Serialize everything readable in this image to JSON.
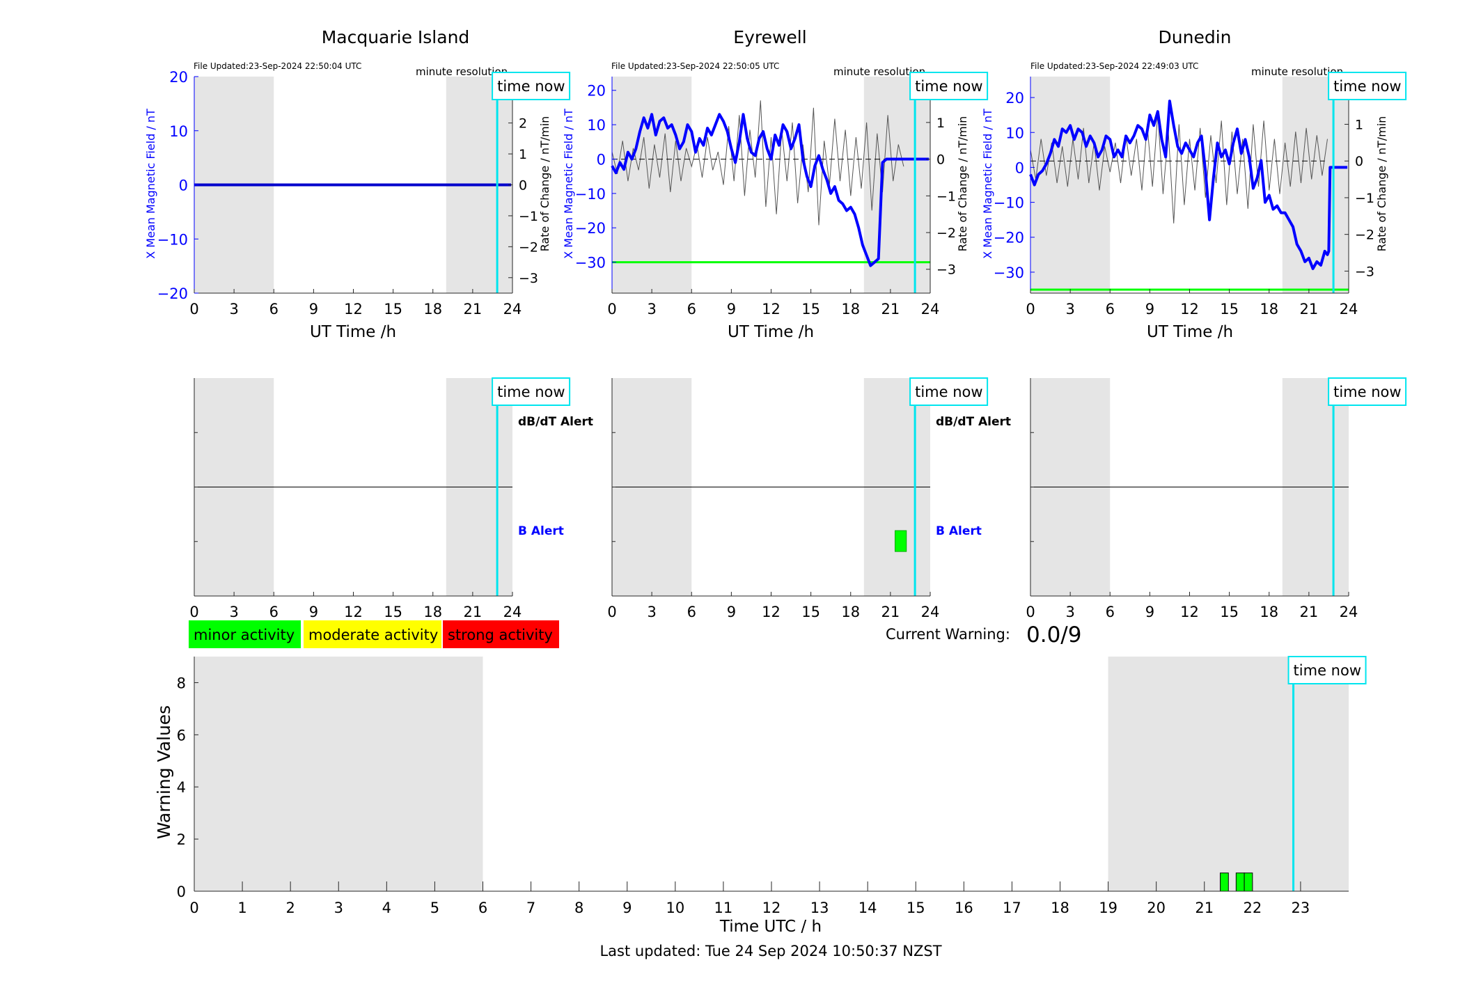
{
  "colors": {
    "field": "#0000ff",
    "rate": "#555555",
    "shade": "#e5e5e5",
    "now": "#00e5ee",
    "minor": "#00ff00",
    "moderate": "#ffff00",
    "strong": "#ff0000",
    "axis": "#262626"
  },
  "common": {
    "time_now": "time now",
    "minute_resolution": "minute resolution",
    "ut_xlabel": "UT Time /h",
    "ylabel_left": "X Mean Magnetic Field / nT",
    "ylabel_right": "Rate of Change / nT/min",
    "dbdt_alert": "dB/dT Alert",
    "b_alert": "B Alert"
  },
  "legend": {
    "minor": "minor activity",
    "moderate": "moderate activity",
    "strong": "strong activity"
  },
  "warning": {
    "label": "Current Warning:",
    "value": "0.0/9"
  },
  "footer": {
    "last_updated": "Last updated: Tue 24 Sep 2024 10:50:37 NZST"
  },
  "chart_data": [
    {
      "type": "line",
      "title": "Macquarie Island",
      "file_updated": "File Updated:23-Sep-2024 22:50:04 UTC",
      "xlabel": "UT Time /h",
      "ylabel": "X Mean Magnetic Field / nT",
      "ylabel_right": "Rate of Change / nT/min",
      "xlim": [
        0,
        24
      ],
      "ylim": [
        -20,
        20
      ],
      "ylim_right": [
        -3.5,
        3.5
      ],
      "xticks": [
        0,
        3,
        6,
        9,
        12,
        15,
        18,
        21,
        24
      ],
      "yticks": [
        -20,
        -10,
        0,
        10,
        20
      ],
      "yticks_right": [
        -3,
        -2,
        -1,
        0,
        1,
        2,
        3
      ],
      "night_shading": [
        [
          0,
          6
        ],
        [
          19,
          24
        ]
      ],
      "time_now": 22.85,
      "threshold": null,
      "series": [
        {
          "x": [
            0,
            23.9
          ],
          "y": [
            0,
            0
          ]
        }
      ],
      "rate_series": []
    },
    {
      "type": "line",
      "title": "Eyrewell",
      "file_updated": "File Updated:23-Sep-2024 22:50:05 UTC",
      "xlabel": "UT Time /h",
      "ylabel": "X Mean Magnetic Field / nT",
      "ylabel_right": "Rate of Change / nT/min",
      "xlim": [
        0,
        24
      ],
      "ylim": [
        -39,
        24
      ],
      "ylim_right": [
        -3.65,
        2.25
      ],
      "xticks": [
        0,
        3,
        6,
        9,
        12,
        15,
        18,
        21,
        24
      ],
      "yticks": [
        -30,
        -20,
        -10,
        0,
        10,
        20
      ],
      "yticks_right": [
        -3,
        -2,
        -1,
        0,
        1,
        2
      ],
      "night_shading": [
        [
          0,
          6
        ],
        [
          19,
          24
        ]
      ],
      "time_now": 22.85,
      "threshold": -30,
      "series": [
        {
          "x": [
            0,
            0.3,
            0.6,
            0.9,
            1.2,
            1.5,
            1.8,
            2.1,
            2.4,
            2.7,
            3.0,
            3.3,
            3.6,
            3.9,
            4.2,
            4.5,
            4.8,
            5.1,
            5.4,
            5.7,
            6.0,
            6.3,
            6.6,
            6.9,
            7.2,
            7.5,
            7.8,
            8.1,
            8.4,
            8.7,
            9.0,
            9.3,
            9.6,
            9.9,
            10.2,
            10.5,
            10.8,
            11.1,
            11.4,
            11.7,
            12.0,
            12.3,
            12.6,
            12.9,
            13.2,
            13.5,
            13.8,
            14.1,
            14.4,
            14.7,
            15.0,
            15.3,
            15.6,
            15.9,
            16.2,
            16.5,
            16.8,
            17.1,
            17.4,
            17.7,
            18.0,
            18.3,
            18.6,
            18.9,
            19.2,
            19.5,
            19.8,
            20.1,
            20.4,
            20.7,
            21.0,
            21.3,
            21.6,
            21.8,
            22.0,
            22.1,
            22.15,
            22.5,
            23.0,
            23.9
          ],
          "y": [
            -2,
            -4,
            -1,
            -3,
            2,
            0,
            3,
            8,
            12,
            9,
            13,
            7,
            11,
            12,
            9,
            10,
            7,
            3,
            5,
            10,
            8,
            2,
            6,
            4,
            9,
            7,
            10,
            13,
            11,
            8,
            3,
            -1,
            5,
            13,
            6,
            2,
            1,
            6,
            8,
            3,
            0,
            7,
            4,
            10,
            8,
            3,
            6,
            10,
            0,
            -5,
            -8,
            -2,
            1,
            -3,
            -6,
            -10,
            -8,
            -12,
            -13,
            -15,
            -14,
            -16,
            -20,
            -25,
            -28,
            -31,
            -30,
            -29,
            -1,
            0,
            0,
            0,
            0,
            0,
            0,
            0,
            0,
            0,
            0,
            0
          ]
        }
      ],
      "rate_series": [
        {
          "x": [
            0,
            0.4,
            0.8,
            1.2,
            1.6,
            2.0,
            2.4,
            2.8,
            3.2,
            3.6,
            4.0,
            4.4,
            4.8,
            5.2,
            5.6,
            6.0,
            6.4,
            6.8,
            7.2,
            7.6,
            8.0,
            8.4,
            8.8,
            9.2,
            9.6,
            10.0,
            10.4,
            10.8,
            11.2,
            11.6,
            12.0,
            12.4,
            12.8,
            13.2,
            13.6,
            14.0,
            14.4,
            14.8,
            15.2,
            15.6,
            16.0,
            16.4,
            16.8,
            17.2,
            17.6,
            18.0,
            18.4,
            18.8,
            19.2,
            19.6,
            20.0,
            20.4,
            20.8,
            21.2,
            21.6,
            22.0
          ],
          "y": [
            0.2,
            -0.4,
            0.5,
            -0.6,
            0.3,
            -0.3,
            0.6,
            -0.8,
            0.4,
            -0.5,
            0.7,
            -0.9,
            0.5,
            -0.6,
            0.3,
            -0.2,
            0.4,
            -0.5,
            0.6,
            -0.3,
            0.2,
            -0.7,
            0.9,
            -0.6,
            1.2,
            -1.0,
            0.8,
            -0.5,
            1.6,
            -1.3,
            0.6,
            -1.5,
            0.8,
            -0.6,
            1.0,
            -1.2,
            0.4,
            -0.9,
            1.4,
            -1.8,
            0.5,
            -0.7,
            1.1,
            -0.6,
            0.8,
            -1.0,
            0.6,
            -0.8,
            1.0,
            -1.4,
            0.7,
            -0.9,
            1.2,
            -0.6,
            0.4,
            -0.2
          ]
        }
      ]
    },
    {
      "type": "line",
      "title": "Dunedin",
      "file_updated": "File Updated:23-Sep-2024 22:49:03 UTC",
      "xlabel": "UT Time /h",
      "ylabel": "X Mean Magnetic Field / nT",
      "ylabel_right": "Rate of Change / nT/min",
      "xlim": [
        0,
        24
      ],
      "ylim": [
        -36,
        26
      ],
      "ylim_right": [
        -3.6,
        2.3
      ],
      "xticks": [
        0,
        3,
        6,
        9,
        12,
        15,
        18,
        21,
        24
      ],
      "yticks": [
        -30,
        -20,
        -10,
        0,
        10,
        20
      ],
      "yticks_right": [
        -3,
        -2,
        -1,
        0,
        1,
        2
      ],
      "night_shading": [
        [
          0,
          6
        ],
        [
          19,
          24
        ]
      ],
      "time_now": 22.85,
      "threshold": -35,
      "series": [
        {
          "x": [
            0,
            0.3,
            0.6,
            0.9,
            1.2,
            1.5,
            1.8,
            2.1,
            2.4,
            2.7,
            3.0,
            3.3,
            3.6,
            3.9,
            4.2,
            4.5,
            4.8,
            5.1,
            5.4,
            5.7,
            6.0,
            6.3,
            6.6,
            6.9,
            7.2,
            7.5,
            7.8,
            8.1,
            8.4,
            8.7,
            9.0,
            9.3,
            9.6,
            9.9,
            10.2,
            10.5,
            10.8,
            11.1,
            11.4,
            11.7,
            12.0,
            12.3,
            12.6,
            12.9,
            13.2,
            13.5,
            13.8,
            14.1,
            14.4,
            14.7,
            15.0,
            15.3,
            15.6,
            15.9,
            16.2,
            16.5,
            16.8,
            17.1,
            17.4,
            17.7,
            18.0,
            18.3,
            18.6,
            18.9,
            19.2,
            19.5,
            19.8,
            20.1,
            20.4,
            20.7,
            21.0,
            21.3,
            21.6,
            21.9,
            22.2,
            22.4,
            22.5,
            22.6,
            22.8,
            23.9
          ],
          "y": [
            -2,
            -5,
            -2,
            -1,
            1,
            4,
            8,
            6,
            11,
            10,
            12,
            8,
            11,
            10,
            6,
            9,
            7,
            3,
            5,
            9,
            8,
            3,
            5,
            3,
            9,
            7,
            9,
            12,
            11,
            8,
            15,
            12,
            16,
            8,
            3,
            19,
            12,
            6,
            4,
            7,
            5,
            3,
            7,
            9,
            -1,
            -15,
            -3,
            7,
            3,
            5,
            1,
            7,
            11,
            4,
            8,
            3,
            -6,
            -3,
            2,
            -10,
            -8,
            -12,
            -11,
            -13,
            -13,
            -15,
            -17,
            -22,
            -24,
            -27,
            -26,
            -29,
            -27,
            -28,
            -24,
            -25,
            -24,
            0,
            0,
            0
          ]
        }
      ],
      "rate_series": [
        {
          "x": [
            0,
            0.4,
            0.8,
            1.2,
            1.6,
            2.0,
            2.4,
            2.8,
            3.2,
            3.6,
            4.0,
            4.4,
            4.8,
            5.2,
            5.6,
            6.0,
            6.4,
            6.8,
            7.2,
            7.6,
            8.0,
            8.4,
            8.8,
            9.2,
            9.6,
            10.0,
            10.4,
            10.8,
            11.2,
            11.6,
            12.0,
            12.4,
            12.8,
            13.2,
            13.6,
            14.0,
            14.4,
            14.8,
            15.2,
            15.6,
            16.0,
            16.4,
            16.8,
            17.2,
            17.6,
            18.0,
            18.4,
            18.8,
            19.2,
            19.6,
            20.0,
            20.4,
            20.8,
            21.2,
            21.6,
            22.0,
            22.4
          ],
          "y": [
            0.3,
            -0.5,
            0.6,
            -0.4,
            0.5,
            -0.6,
            0.4,
            -0.7,
            0.6,
            -0.5,
            0.9,
            -0.6,
            0.5,
            -0.8,
            0.4,
            -0.3,
            0.5,
            -0.6,
            0.7,
            -0.4,
            0.6,
            -0.8,
            1.0,
            -0.7,
            1.3,
            -0.9,
            0.8,
            -1.7,
            1.0,
            -1.2,
            0.6,
            -0.8,
            0.9,
            -1.0,
            0.7,
            -0.6,
            1.1,
            -1.2,
            0.8,
            -0.9,
            0.6,
            -1.3,
            1.0,
            -0.7,
            1.1,
            -0.8,
            0.6,
            -0.9,
            0.5,
            -0.7,
            0.8,
            -0.6,
            0.9,
            -0.5,
            0.7,
            -0.4,
            0.6
          ]
        }
      ]
    },
    {
      "type": "bar",
      "title": "",
      "xlim": [
        0,
        24
      ],
      "ylim": [
        0,
        2
      ],
      "xticks": [
        0,
        3,
        6,
        9,
        12,
        15,
        18,
        21,
        24
      ],
      "row_labels": [
        "dB/dT Alert",
        "B Alert"
      ],
      "night_shading": [
        [
          0,
          6
        ],
        [
          19,
          24
        ]
      ],
      "time_now": 22.85,
      "alerts": []
    },
    {
      "type": "bar",
      "title": "",
      "xlim": [
        0,
        24
      ],
      "ylim": [
        0,
        2
      ],
      "xticks": [
        0,
        3,
        6,
        9,
        12,
        15,
        18,
        21,
        24
      ],
      "row_labels": [
        "dB/dT Alert",
        "B Alert"
      ],
      "night_shading": [
        [
          0,
          6
        ],
        [
          19,
          24
        ]
      ],
      "time_now": 22.85,
      "alerts": [
        {
          "row": "B Alert",
          "start": 21.35,
          "end": 22.2,
          "level": "minor"
        }
      ]
    },
    {
      "type": "bar",
      "title": "",
      "xlim": [
        0,
        24
      ],
      "ylim": [
        0,
        2
      ],
      "xticks": [
        0,
        3,
        6,
        9,
        12,
        15,
        18,
        21,
        24
      ],
      "row_labels": [],
      "night_shading": [
        [
          0,
          6
        ],
        [
          19,
          24
        ]
      ],
      "time_now": 22.85,
      "alerts": []
    },
    {
      "type": "bar",
      "title": "",
      "xlabel": "Time UTC / h",
      "ylabel": "Warning Values",
      "xlim": [
        0,
        24
      ],
      "ylim": [
        0,
        9
      ],
      "xticks": [
        0,
        1,
        2,
        3,
        4,
        5,
        6,
        7,
        8,
        9,
        10,
        11,
        12,
        13,
        14,
        15,
        16,
        17,
        18,
        19,
        20,
        21,
        22,
        23
      ],
      "yticks": [
        0,
        2,
        4,
        6,
        8
      ],
      "night_shading": [
        [
          0,
          6
        ],
        [
          19,
          24
        ]
      ],
      "time_now": 22.85,
      "bars": [
        {
          "start": 21.33,
          "end": 21.5,
          "value": 0.7,
          "level": "minor"
        },
        {
          "start": 21.66,
          "end": 21.83,
          "value": 0.7,
          "level": "minor"
        },
        {
          "start": 21.83,
          "end": 22.0,
          "value": 0.7,
          "level": "minor"
        }
      ]
    }
  ]
}
